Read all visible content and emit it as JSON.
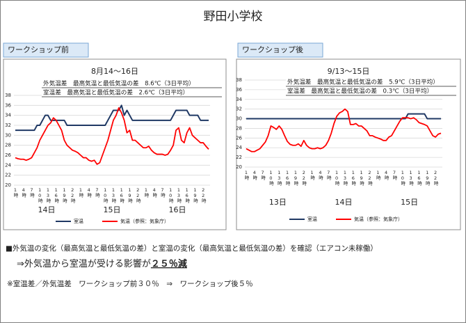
{
  "title": "野田小学校",
  "summary": {
    "line1": "■外気温の変化（最高気温と最低気温の差）と室温の変化（最高気温と最低気温の差）を確認（エアコン未稼働）",
    "line2": "⇒外気温から室温が受ける影響が",
    "line2_emphasis": "２５％減",
    "line3": "※室温差／外気温差　ワークショップ前３０％　⇒　ワークショップ後５％"
  },
  "chart_data": [
    {
      "type": "line",
      "panel_label": "ワークショップ前",
      "title": "8月14～16日",
      "annotations": [
        "外気温差　最高気温と最低気温の差　8.6℃（3日平均）",
        "室温差　最高気温と最低気温の差　2.6℃（3日平均）"
      ],
      "categories": [
        "1時",
        null,
        null,
        "4時",
        null,
        null,
        "7時",
        null,
        null,
        "10時",
        null,
        null,
        "13時",
        null,
        null,
        "16時",
        null,
        null,
        "19時",
        null,
        null,
        "22時",
        null,
        null,
        "1時",
        null,
        null,
        "4時",
        null,
        null,
        "7時",
        null,
        null,
        "10時",
        null,
        null,
        "13時",
        null,
        null,
        "16時",
        null,
        null,
        "19時",
        null,
        null,
        "22時",
        null,
        null,
        "1時",
        null,
        null,
        "4時",
        null,
        null,
        "7時",
        null,
        null,
        "10時",
        null,
        null,
        "13時",
        null,
        null,
        "16時",
        null,
        null,
        "19時",
        null,
        null,
        "22時",
        null,
        null
      ],
      "day_labels": [
        "14日",
        "15日",
        "16日"
      ],
      "ylim": [
        20,
        38
      ],
      "yticks": [
        20,
        22,
        24,
        26,
        28,
        30,
        32,
        34,
        36,
        38
      ],
      "grid": true,
      "legend": "bottom",
      "series": [
        {
          "name": "室温",
          "color": "#1f3864",
          "values": [
            31,
            31,
            31,
            31,
            31,
            31,
            31,
            31,
            32,
            32,
            33,
            34,
            34,
            33,
            33,
            33,
            33,
            33,
            33,
            32,
            32,
            32,
            32,
            32,
            32,
            32,
            32,
            32,
            32,
            32,
            32,
            32,
            32,
            32,
            33,
            34,
            35,
            35,
            35,
            36,
            34,
            35,
            34,
            33,
            33,
            33,
            33,
            33,
            33,
            33,
            33,
            33,
            33,
            33,
            33,
            33,
            33,
            33,
            34,
            35,
            35,
            35,
            35,
            35,
            34,
            34,
            34,
            34,
            33,
            33,
            33,
            33
          ]
        },
        {
          "name": "気温（参照：気象庁）",
          "color": "#ff0000",
          "values": [
            25.5,
            25.3,
            25.2,
            25.2,
            25,
            25.2,
            25.5,
            26.5,
            27.5,
            29,
            30,
            31,
            32,
            32.5,
            33.5,
            33,
            32,
            31,
            29,
            28,
            27.5,
            27,
            26.8,
            26.5,
            26,
            25.5,
            25.5,
            25,
            24.8,
            25,
            24.2,
            24.5,
            26,
            27.5,
            29,
            31,
            33,
            34,
            35.5,
            34.5,
            33,
            30.5,
            31,
            29,
            29,
            28.5,
            28,
            27.5,
            27.5,
            27.8,
            27,
            26.5,
            26.2,
            26.2,
            26.2,
            26,
            26.2,
            27,
            28,
            31,
            31.5,
            29,
            28.5,
            30.5,
            31.5,
            30,
            29.5,
            29,
            28.5,
            28.5,
            27.8,
            27.2
          ]
        }
      ]
    },
    {
      "type": "line",
      "panel_label": "ワークショップ後",
      "title": "9/13～15日",
      "annotations": [
        "外気温差　最高気温と最低気温の差　5.9℃（3日平均）",
        "室温差　最高気温と最低気温の差　0.3℃（3日平均）"
      ],
      "categories": [
        "1時",
        null,
        null,
        "4時",
        null,
        null,
        "7時",
        null,
        null,
        "10時",
        null,
        null,
        "13時",
        null,
        null,
        "16時",
        null,
        null,
        "19時",
        null,
        null,
        "22時",
        null,
        null,
        "1時",
        null,
        null,
        "4時",
        null,
        null,
        "7時",
        null,
        null,
        "10時",
        null,
        null,
        "13時",
        null,
        null,
        "16時",
        null,
        null,
        "19時",
        null,
        null,
        "22時",
        null,
        null,
        "1時",
        null,
        null,
        "4時",
        null,
        null,
        "7時",
        null,
        null,
        "10時",
        null,
        null,
        "13時",
        null,
        null,
        "16時",
        null,
        null,
        "19時",
        null,
        null,
        "22時",
        null,
        null
      ],
      "day_labels": [
        "13日",
        "14日",
        "15日"
      ],
      "ylim": [
        20,
        38
      ],
      "yticks": [
        20,
        22,
        24,
        26,
        28,
        30,
        32,
        34,
        36,
        38
      ],
      "grid": true,
      "legend": "bottom",
      "series": [
        {
          "name": "室温",
          "color": "#1f3864",
          "values": [
            30,
            30,
            30,
            30,
            30,
            30,
            30,
            30,
            30,
            30,
            30,
            30,
            30,
            30,
            30,
            30,
            30,
            30,
            30,
            30,
            30,
            30,
            30,
            30,
            30,
            30,
            30,
            30,
            30,
            30,
            30,
            30,
            30,
            30,
            30,
            30,
            30,
            30,
            30,
            30,
            30,
            30,
            30,
            30,
            30,
            30,
            30,
            30,
            30,
            30,
            30,
            30,
            30,
            30,
            30,
            30,
            30,
            30,
            30,
            31,
            31,
            31,
            31,
            31,
            31,
            31,
            30,
            30,
            30,
            30,
            30,
            30
          ]
        },
        {
          "name": "気温（参照：気象庁）",
          "color": "#ff0000",
          "values": [
            23.8,
            23.5,
            23.2,
            23.2,
            23.5,
            23.8,
            24.5,
            25.2,
            26.5,
            28.5,
            28.2,
            27.8,
            28.5,
            27.8,
            26.5,
            25.3,
            24.7,
            24.5,
            24.5,
            24.8,
            24.3,
            25.5,
            24.5,
            24,
            23.8,
            23.8,
            24,
            23.8,
            24,
            24.5,
            25.5,
            27,
            29,
            30.5,
            31.2,
            31.5,
            32,
            31.5,
            28.8,
            28.8,
            29,
            28.5,
            28.5,
            28,
            27.5,
            26.5,
            26.5,
            26.2,
            26,
            25.8,
            25.5,
            25.5,
            26.2,
            26.5,
            27.5,
            28.5,
            29.5,
            30.2,
            30.2,
            30.2,
            30,
            30.2,
            29.8,
            29.2,
            29,
            28.8,
            28.5,
            27.5,
            26.5,
            26.2,
            26.8,
            27
          ]
        }
      ]
    }
  ]
}
